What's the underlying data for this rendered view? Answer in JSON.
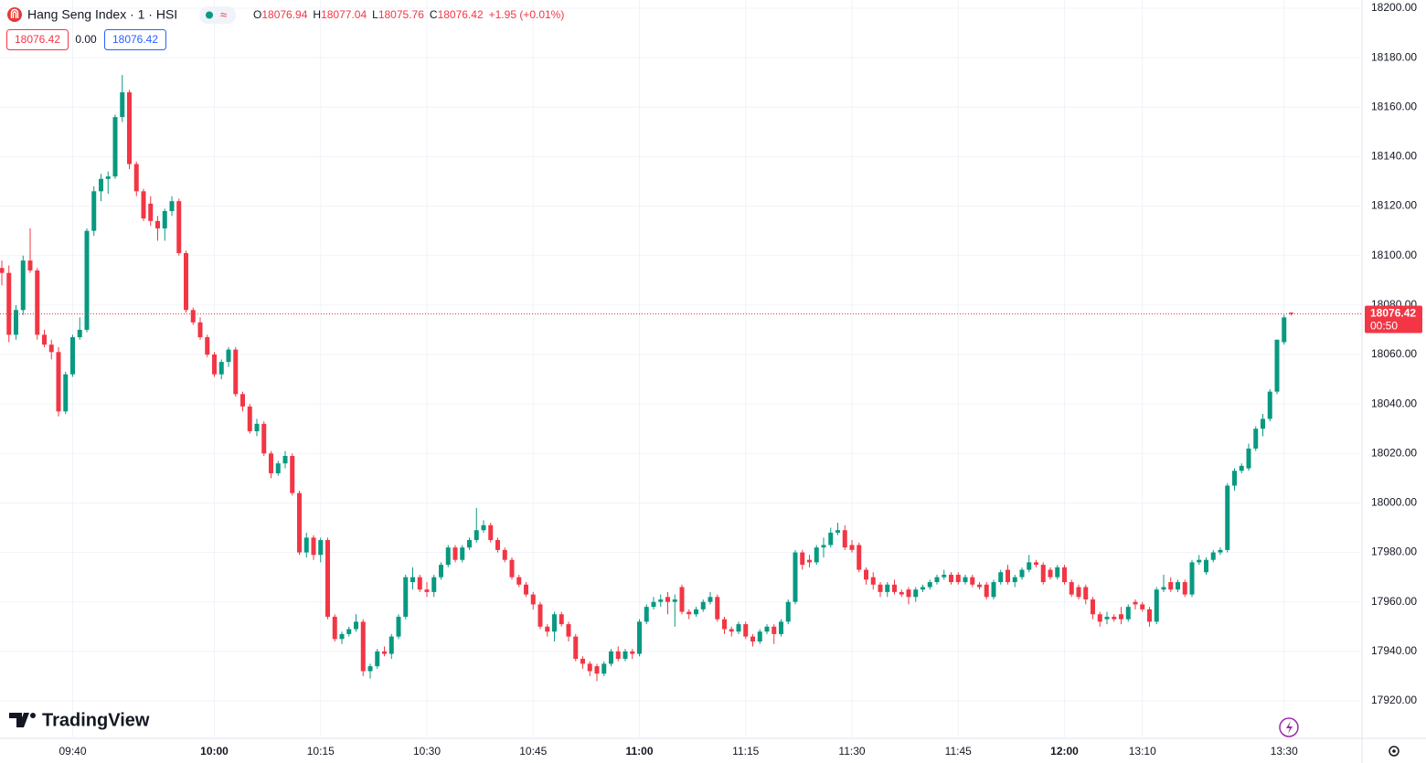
{
  "header": {
    "symbol": "Hang Seng Index · 1 · HSI",
    "legend": [
      {
        "label": "O",
        "value": 18076.94
      },
      {
        "label": "H",
        "value": 18077.04
      },
      {
        "label": "L",
        "value": 18075.76
      },
      {
        "label": "C",
        "value": 18076.42
      }
    ],
    "change": "+1.95 (+0.01%)",
    "bid": "18076.42",
    "spread": "0.00",
    "ask": "18076.42"
  },
  "brand": "TradingView",
  "chart_data": {
    "type": "candlestick",
    "up_color": "#089981",
    "down_color": "#f23645",
    "grid": true,
    "ylim": [
      17920,
      18200
    ],
    "yticks": [
      {
        "value": 17920,
        "label": "17920.00"
      },
      {
        "value": 17940,
        "label": "17940.00"
      },
      {
        "value": 17960,
        "label": "17960.00"
      },
      {
        "value": 17980,
        "label": "17980.00"
      },
      {
        "value": 18000,
        "label": "18000.00"
      },
      {
        "value": 18020,
        "label": "18020.00"
      },
      {
        "value": 18040,
        "label": "18040.00"
      },
      {
        "value": 18060,
        "label": "18060.00"
      },
      {
        "value": 18080,
        "label": "18080.00"
      },
      {
        "value": 18100,
        "label": "18100.00"
      },
      {
        "value": 18120,
        "label": "18120.00"
      },
      {
        "value": 18140,
        "label": "18140.00"
      },
      {
        "value": 18160,
        "label": "18160.00"
      },
      {
        "value": 18180,
        "label": "18180.00"
      },
      {
        "value": 18200,
        "label": "18200.00"
      }
    ],
    "xticks": [
      {
        "value": 10,
        "label": "09:40"
      },
      {
        "value": 30,
        "label": "10:00"
      },
      {
        "value": 45,
        "label": "10:15"
      },
      {
        "value": 60,
        "label": "10:30"
      },
      {
        "value": 75,
        "label": "10:45"
      },
      {
        "value": 90,
        "label": "11:00"
      },
      {
        "value": 105,
        "label": "11:15"
      },
      {
        "value": 120,
        "label": "11:30"
      },
      {
        "value": 135,
        "label": "11:45"
      },
      {
        "value": 150,
        "label": "12:00"
      },
      {
        "value": 161,
        "label": "13:10"
      },
      {
        "value": 181,
        "label": "13:30"
      }
    ],
    "last_price": {
      "value": 18076.42,
      "label": "18076.42",
      "countdown": "00:50"
    },
    "candles": [
      [
        18095,
        18098,
        18088,
        18093
      ],
      [
        18093,
        18096,
        18065,
        18068
      ],
      [
        18068,
        18080,
        18066,
        18078
      ],
      [
        18078,
        18100,
        18076,
        18098
      ],
      [
        18098,
        18111,
        18093,
        18094
      ],
      [
        18094,
        18095,
        18066,
        18068
      ],
      [
        18068,
        18070,
        18063,
        18064
      ],
      [
        18064,
        18066,
        18058,
        18061
      ],
      [
        18061,
        18063,
        18035,
        18037
      ],
      [
        18037,
        18053,
        18036,
        18052
      ],
      [
        18052,
        18068,
        18051,
        18067
      ],
      [
        18067,
        18075,
        18066,
        18070
      ],
      [
        18070,
        18111,
        18069,
        18110
      ],
      [
        18110,
        18128,
        18108,
        18126
      ],
      [
        18126,
        18133,
        18122,
        18131
      ],
      [
        18131,
        18134,
        18125,
        18132
      ],
      [
        18132,
        18157,
        18131,
        18156
      ],
      [
        18156,
        18173,
        18154,
        18166
      ],
      [
        18166,
        18167,
        18135,
        18137
      ],
      [
        18137,
        18138,
        18124,
        18126
      ],
      [
        18126,
        18127,
        18114,
        18115
      ],
      [
        18121,
        18124,
        18112,
        18114
      ],
      [
        18114,
        18116,
        18106,
        18111
      ],
      [
        18111,
        18119,
        18106,
        18118
      ],
      [
        18118,
        18124,
        18116,
        18122
      ],
      [
        18122,
        18123,
        18100,
        18101
      ],
      [
        18101,
        18102,
        18077,
        18078
      ],
      [
        18078,
        18079,
        18072,
        18073
      ],
      [
        18073,
        18075,
        18066,
        18067
      ],
      [
        18067,
        18068,
        18059,
        18060
      ],
      [
        18060,
        18061,
        18051,
        18052
      ],
      [
        18052,
        18058,
        18050,
        18057
      ],
      [
        18057,
        18063,
        18055,
        18062
      ],
      [
        18062,
        18063,
        18043,
        18044
      ],
      [
        18044,
        18045,
        18037,
        18039
      ],
      [
        18039,
        18040,
        18028,
        18029
      ],
      [
        18029,
        18034,
        18027,
        18032
      ],
      [
        18032,
        18033,
        18019,
        18020
      ],
      [
        18020,
        18021,
        18010,
        18012
      ],
      [
        18012,
        18017,
        18011,
        18016
      ],
      [
        18016,
        18021,
        18014,
        18019
      ],
      [
        18019,
        18020,
        18003,
        18004
      ],
      [
        18004,
        18005,
        17979,
        17980
      ],
      [
        17980,
        17988,
        17978,
        17986
      ],
      [
        17986,
        17987,
        17977,
        17979
      ],
      [
        17979,
        17986,
        17976,
        17985
      ],
      [
        17985,
        17986,
        17953,
        17954
      ],
      [
        17954,
        17955,
        17944,
        17945
      ],
      [
        17945,
        17948,
        17943,
        17947
      ],
      [
        17947,
        17950,
        17946,
        17949
      ],
      [
        17949,
        17955,
        17948,
        17952
      ],
      [
        17952,
        17953,
        17930,
        17932
      ],
      [
        17932,
        17935,
        17929,
        17934
      ],
      [
        17934,
        17941,
        17933,
        17940
      ],
      [
        17940,
        17942,
        17938,
        17939
      ],
      [
        17939,
        17947,
        17937,
        17946
      ],
      [
        17946,
        17955,
        17945,
        17954
      ],
      [
        17954,
        17971,
        17953,
        17970
      ],
      [
        17968,
        17974,
        17965,
        17970
      ],
      [
        17970,
        17971,
        17964,
        17965
      ],
      [
        17965,
        17968,
        17962,
        17964
      ],
      [
        17964,
        17971,
        17962,
        17970
      ],
      [
        17970,
        17976,
        17969,
        17975
      ],
      [
        17975,
        17983,
        17974,
        17982
      ],
      [
        17982,
        17983,
        17976,
        17977
      ],
      [
        17977,
        17983,
        17976,
        17982
      ],
      [
        17982,
        17986,
        17981,
        17985
      ],
      [
        17985,
        17998,
        17984,
        17989
      ],
      [
        17989,
        17993,
        17988,
        17991
      ],
      [
        17991,
        17992,
        17984,
        17985
      ],
      [
        17985,
        17986,
        17980,
        17981
      ],
      [
        17981,
        17982,
        17976,
        17977
      ],
      [
        17977,
        17978,
        17969,
        17970
      ],
      [
        17970,
        17971,
        17966,
        17967
      ],
      [
        17967,
        17968,
        17962,
        17963
      ],
      [
        17963,
        17964,
        17957,
        17959
      ],
      [
        17959,
        17960,
        17949,
        17950
      ],
      [
        17950,
        17951,
        17946,
        17948
      ],
      [
        17948,
        17956,
        17944,
        17955
      ],
      [
        17955,
        17956,
        17950,
        17951
      ],
      [
        17951,
        17952,
        17944,
        17946
      ],
      [
        17946,
        17947,
        17936,
        17937
      ],
      [
        17937,
        17938,
        17933,
        17935
      ],
      [
        17935,
        17936,
        17930,
        17932
      ],
      [
        17934,
        17935,
        17928,
        17931
      ],
      [
        17931,
        17936,
        17930,
        17935
      ],
      [
        17935,
        17941,
        17934,
        17940
      ],
      [
        17940,
        17942,
        17936,
        17937
      ],
      [
        17937,
        17941,
        17936,
        17940
      ],
      [
        17940,
        17941,
        17937,
        17939
      ],
      [
        17939,
        17953,
        17938,
        17952
      ],
      [
        17952,
        17959,
        17951,
        17958
      ],
      [
        17958,
        17962,
        17957,
        17960
      ],
      [
        17960,
        17963,
        17958,
        17961
      ],
      [
        17962,
        17964,
        17955,
        17960
      ],
      [
        17960,
        17963,
        17950,
        17961
      ],
      [
        17966,
        17967,
        17955,
        17956
      ],
      [
        17956,
        17957,
        17953,
        17955
      ],
      [
        17955,
        17958,
        17954,
        17957
      ],
      [
        17957,
        17961,
        17956,
        17960
      ],
      [
        17960,
        17964,
        17959,
        17962
      ],
      [
        17962,
        17963,
        17952,
        17953
      ],
      [
        17953,
        17954,
        17947,
        17949
      ],
      [
        17949,
        17950,
        17946,
        17948
      ],
      [
        17948,
        17952,
        17947,
        17951
      ],
      [
        17951,
        17952,
        17945,
        17946
      ],
      [
        17946,
        17947,
        17942,
        17944
      ],
      [
        17944,
        17949,
        17943,
        17948
      ],
      [
        17948,
        17951,
        17947,
        17950
      ],
      [
        17950,
        17951,
        17943,
        17947
      ],
      [
        17947,
        17953,
        17946,
        17952
      ],
      [
        17952,
        17961,
        17951,
        17960
      ],
      [
        17960,
        17981,
        17959,
        17980
      ],
      [
        17980,
        17981,
        17973,
        17975
      ],
      [
        17977,
        17979,
        17974,
        17976
      ],
      [
        17976,
        17983,
        17975,
        17982
      ],
      [
        17982,
        17986,
        17978,
        17983
      ],
      [
        17983,
        17990,
        17982,
        17988
      ],
      [
        17988,
        17992,
        17987,
        17989
      ],
      [
        17989,
        17991,
        17981,
        17982
      ],
      [
        17983,
        17985,
        17980,
        17981
      ],
      [
        17983,
        17984,
        17972,
        17973
      ],
      [
        17973,
        17974,
        17967,
        17969
      ],
      [
        17970,
        17972,
        17965,
        17967
      ],
      [
        17967,
        17968,
        17962,
        17964
      ],
      [
        17964,
        17968,
        17962,
        17967
      ],
      [
        17967,
        17969,
        17963,
        17964
      ],
      [
        17964,
        17965,
        17962,
        17963
      ],
      [
        17965,
        17966,
        17959,
        17962
      ],
      [
        17962,
        17966,
        17960,
        17965
      ],
      [
        17965,
        17967,
        17964,
        17966
      ],
      [
        17966,
        17969,
        17965,
        17968
      ],
      [
        17968,
        17971,
        17967,
        17970
      ],
      [
        17970,
        17973,
        17969,
        17971
      ],
      [
        17971,
        17972,
        17967,
        17968
      ],
      [
        17971,
        17972,
        17967,
        17968
      ],
      [
        17968,
        17971,
        17967,
        17970
      ],
      [
        17970,
        17971,
        17966,
        17967
      ],
      [
        17967,
        17968,
        17965,
        17966
      ],
      [
        17967,
        17968,
        17961,
        17962
      ],
      [
        17962,
        17969,
        17961,
        17968
      ],
      [
        17968,
        17973,
        17967,
        17972
      ],
      [
        17973,
        17975,
        17967,
        17968
      ],
      [
        17968,
        17971,
        17966,
        17970
      ],
      [
        17970,
        17974,
        17969,
        17973
      ],
      [
        17973,
        17979,
        17972,
        17976
      ],
      [
        17976,
        17977,
        17974,
        17975
      ],
      [
        17975,
        17976,
        17967,
        17968
      ],
      [
        17973,
        17974,
        17969,
        17970
      ],
      [
        17970,
        17975,
        17969,
        17974
      ],
      [
        17974,
        17975,
        17967,
        17968
      ],
      [
        17968,
        17969,
        17962,
        17963
      ],
      [
        17966,
        17967,
        17961,
        17962
      ],
      [
        17966,
        17967,
        17959,
        17961
      ],
      [
        17961,
        17962,
        17953,
        17955
      ],
      [
        17955,
        17956,
        17950,
        17952
      ],
      [
        17953,
        17956,
        17951,
        17954
      ],
      [
        17954,
        17955,
        17952,
        17953
      ],
      [
        17955,
        17958,
        17951,
        17953
      ],
      [
        17953,
        17959,
        17952,
        17958
      ],
      [
        17960,
        17961,
        17957,
        17959
      ],
      [
        17959,
        17960,
        17956,
        17957
      ],
      [
        17957,
        17958,
        17950,
        17952
      ],
      [
        17952,
        17966,
        17951,
        17965
      ],
      [
        17965,
        17971,
        17964,
        17966
      ],
      [
        17968,
        17970,
        17964,
        17965
      ],
      [
        17965,
        17969,
        17964,
        17968
      ],
      [
        17968,
        17969,
        17962,
        17963
      ],
      [
        17963,
        17977,
        17962,
        17976
      ],
      [
        17976,
        17979,
        17975,
        17977
      ],
      [
        17972,
        17978,
        17971,
        17977
      ],
      [
        17977,
        17981,
        17976,
        17980
      ],
      [
        17980,
        17982,
        17979,
        17981
      ],
      [
        17981,
        18008,
        17980,
        18007
      ],
      [
        18007,
        18014,
        18005,
        18013
      ],
      [
        18013,
        18016,
        18012,
        18015
      ],
      [
        18014,
        18024,
        18013,
        18022
      ],
      [
        18022,
        18031,
        18021,
        18030
      ],
      [
        18030,
        18036,
        18027,
        18034
      ],
      [
        18034,
        18046,
        18033,
        18045
      ],
      [
        18045,
        18066,
        18044,
        18066
      ],
      [
        18065,
        18076,
        18064,
        18075
      ],
      [
        18076.94,
        18077.04,
        18075.76,
        18076.42
      ]
    ]
  }
}
